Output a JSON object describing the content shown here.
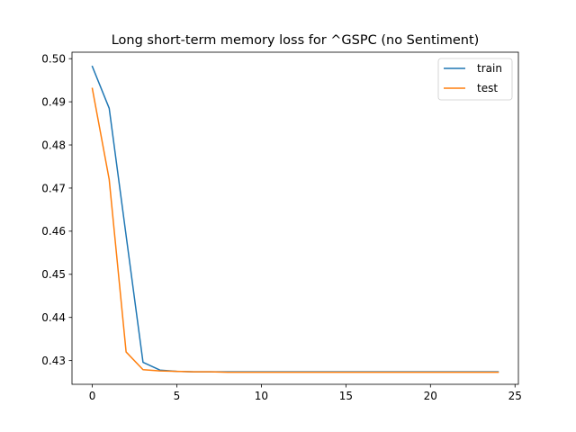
{
  "chart_data": {
    "type": "line",
    "title": "Long short-term memory loss for ^GSPC (no Sentiment)",
    "xlabel": "",
    "ylabel": "",
    "xlim": [
      -1.2,
      25.2
    ],
    "ylim": [
      0.4245,
      0.5015
    ],
    "x_ticks": [
      0,
      5,
      10,
      15,
      20,
      25
    ],
    "y_ticks": [
      0.43,
      0.44,
      0.45,
      0.46,
      0.47,
      0.48,
      0.49,
      0.5
    ],
    "y_tick_labels": [
      "0.43",
      "0.44",
      "0.45",
      "0.46",
      "0.47",
      "0.48",
      "0.49",
      "0.50"
    ],
    "grid": false,
    "legend_position": "top-right",
    "x": [
      0,
      1,
      2,
      3,
      4,
      5,
      6,
      7,
      8,
      9,
      10,
      11,
      12,
      13,
      14,
      15,
      16,
      17,
      18,
      19,
      20,
      21,
      22,
      23,
      24
    ],
    "series": [
      {
        "name": "train",
        "color": "#1f77b4",
        "values": [
          0.4982,
          0.4885,
          0.459,
          0.4296,
          0.4278,
          0.4275,
          0.4274,
          0.4274,
          0.4274,
          0.4274,
          0.4274,
          0.4274,
          0.4274,
          0.4274,
          0.4274,
          0.4274,
          0.4274,
          0.4274,
          0.4274,
          0.4274,
          0.4274,
          0.4274,
          0.4274,
          0.4274,
          0.4274
        ]
      },
      {
        "name": "test",
        "color": "#ff7f0e",
        "values": [
          0.4931,
          0.472,
          0.432,
          0.4279,
          0.4276,
          0.4275,
          0.4274,
          0.4274,
          0.4273,
          0.4273,
          0.4273,
          0.4273,
          0.4273,
          0.4273,
          0.4273,
          0.4273,
          0.4273,
          0.4273,
          0.4273,
          0.4273,
          0.4273,
          0.4273,
          0.4273,
          0.4273,
          0.4273
        ]
      }
    ]
  }
}
